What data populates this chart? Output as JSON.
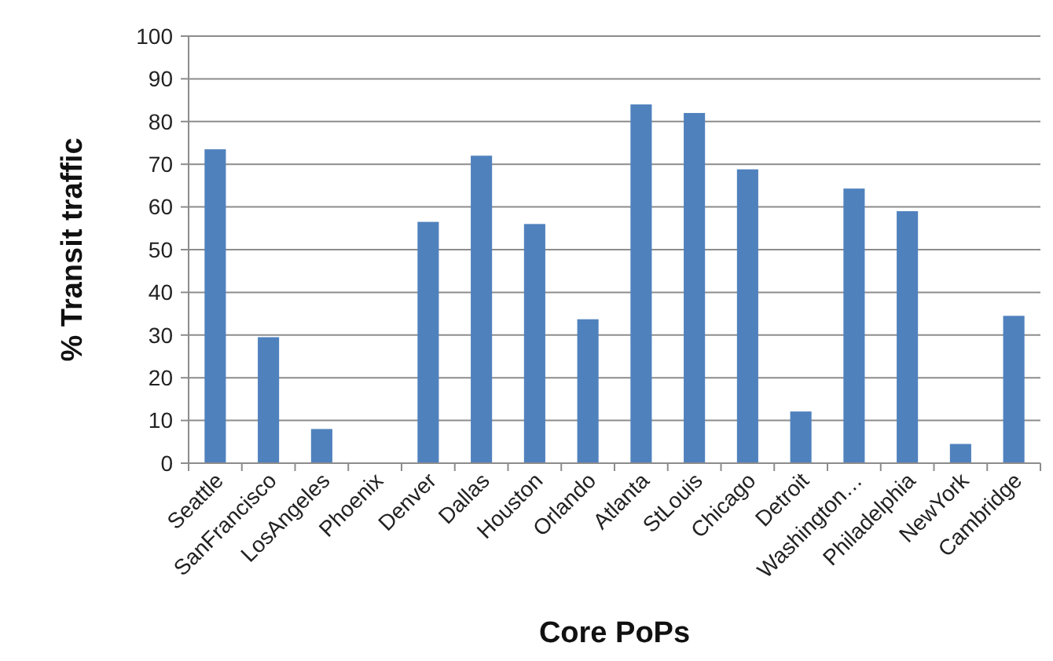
{
  "chart_data": {
    "type": "bar",
    "xlabel": "Core PoPs",
    "ylabel": "% Transit traffic",
    "categories": [
      "Seattle",
      "SanFrancisco",
      "LosAngeles",
      "Phoenix",
      "Denver",
      "Dallas",
      "Houston",
      "Orlando",
      "Atlanta",
      "StLouis",
      "Chicago",
      "Detroit",
      "Washington…",
      "Philadelphia",
      "NewYork",
      "Cambridge"
    ],
    "values": [
      73.5,
      29.5,
      8,
      0,
      56.5,
      72,
      56,
      33.7,
      84,
      82,
      68.8,
      12.1,
      64.3,
      59,
      4.5,
      34.5
    ],
    "color": "#4f81bd",
    "ylim": [
      0,
      100
    ],
    "yticks": [
      0,
      10,
      20,
      30,
      40,
      50,
      60,
      70,
      80,
      90,
      100
    ],
    "grid": "y"
  }
}
